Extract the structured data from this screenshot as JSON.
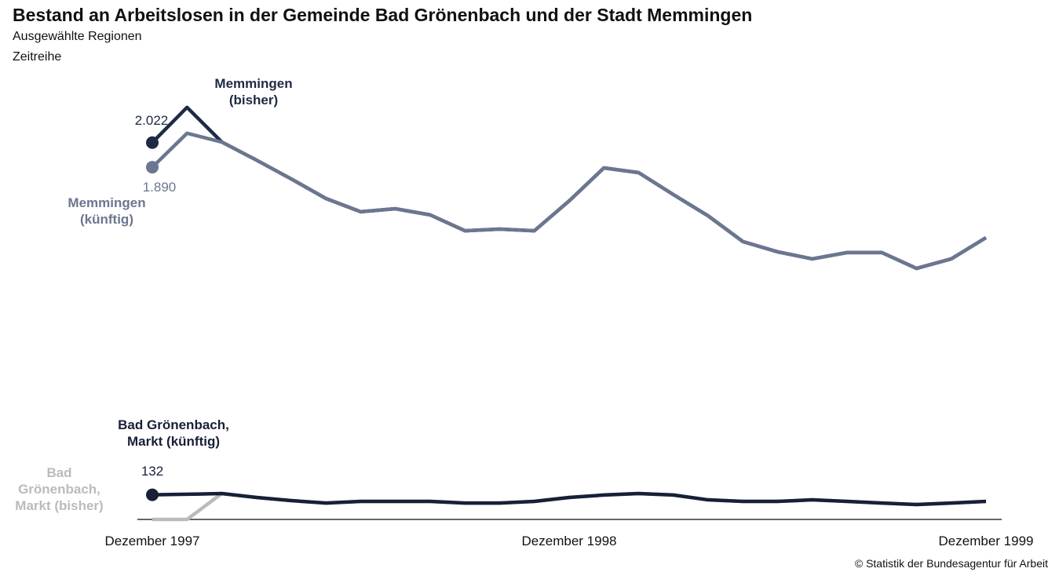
{
  "chart_data": {
    "type": "line",
    "title": "Bestand an Arbeitslosen in der Gemeinde Bad Grönenbach und der Stadt Memmingen",
    "subtitle": "Ausgewählte Regionen",
    "subtitle2": "Zeitreihe",
    "source": "© Statistik der Bundesagentur für Arbeit",
    "categories": [
      "Dezember 1997",
      null,
      null,
      null,
      null,
      null,
      null,
      null,
      null,
      null,
      null,
      null,
      "Dezember 1998",
      null,
      null,
      null,
      null,
      null,
      null,
      null,
      null,
      null,
      null,
      null,
      "Dezember 1999"
    ],
    "ylim": [
      0,
      2324
    ],
    "series": [
      {
        "name": "Bad Grönenbach, Markt (bisher)",
        "color": "#bbbbbb",
        "values": [
          0,
          0,
          139,
          118,
          101,
          88,
          97,
          97,
          97,
          88,
          88,
          97,
          118,
          131,
          139,
          131,
          105,
          97,
          97,
          105,
          97,
          88,
          80,
          88,
          97
        ]
      },
      {
        "name": "Bad Grönenbach, Markt (künftig)",
        "color": "#172038",
        "values": [
          132,
          135,
          139,
          118,
          101,
          88,
          97,
          97,
          97,
          88,
          88,
          97,
          118,
          131,
          139,
          131,
          105,
          97,
          97,
          105,
          97,
          88,
          80,
          88,
          97
        ],
        "value_labels": [
          "132",
          null,
          null,
          null,
          null,
          null,
          null,
          null,
          null,
          null,
          null,
          null,
          null,
          null,
          null,
          null,
          null,
          null,
          null,
          null,
          null,
          null,
          null,
          null,
          null
        ]
      },
      {
        "name": "Memmingen (bisher)",
        "color": "#1f2a44",
        "values": [
          2022,
          2211,
          2025,
          1928,
          1827,
          1722,
          1651,
          1667,
          1634,
          1549,
          1558,
          1549,
          1709,
          1886,
          1861,
          1743,
          1629,
          1491,
          1436,
          1398,
          1432,
          1432,
          1347,
          1398,
          1512
        ],
        "value_labels": [
          "2.022",
          null,
          null,
          null,
          null,
          null,
          null,
          null,
          null,
          null,
          null,
          null,
          null,
          null,
          null,
          null,
          null,
          null,
          null,
          null,
          null,
          null,
          null,
          null,
          null
        ]
      },
      {
        "name": "Memmingen (künftig)",
        "color": "#6b7690",
        "values": [
          1890,
          2072,
          2025,
          1928,
          1827,
          1722,
          1651,
          1667,
          1634,
          1549,
          1558,
          1549,
          1709,
          1886,
          1861,
          1743,
          1629,
          1491,
          1436,
          1398,
          1432,
          1432,
          1347,
          1398,
          1512
        ],
        "value_labels": [
          "1.890",
          null,
          null,
          null,
          null,
          null,
          null,
          null,
          null,
          null,
          null,
          null,
          null,
          null,
          null,
          null,
          null,
          null,
          null,
          null,
          null,
          null,
          null,
          null,
          null
        ]
      }
    ]
  }
}
